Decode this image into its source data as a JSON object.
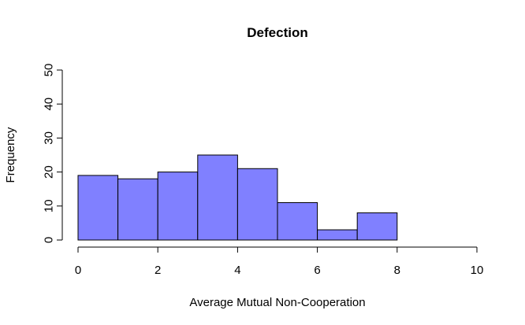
{
  "chart_data": {
    "type": "bar",
    "title": "Defection",
    "xlabel": "Average Mutual Non-Cooperation",
    "ylabel": "Frequency",
    "bins": [
      {
        "from": 0,
        "to": 1,
        "count": 19
      },
      {
        "from": 1,
        "to": 2,
        "count": 18
      },
      {
        "from": 2,
        "to": 3,
        "count": 20
      },
      {
        "from": 3,
        "to": 4,
        "count": 25
      },
      {
        "from": 4,
        "to": 5,
        "count": 21
      },
      {
        "from": 5,
        "to": 6,
        "count": 11
      },
      {
        "from": 6,
        "to": 7,
        "count": 3
      },
      {
        "from": 7,
        "to": 8,
        "count": 8
      }
    ],
    "xlim": [
      0,
      10
    ],
    "ylim": [
      0,
      50
    ],
    "xticks": [
      "0",
      "2",
      "4",
      "6",
      "8",
      "10"
    ],
    "yticks": [
      "0",
      "10",
      "20",
      "30",
      "40",
      "50"
    ],
    "bar_color": "#8080ff",
    "grid": false,
    "legend": "none"
  }
}
